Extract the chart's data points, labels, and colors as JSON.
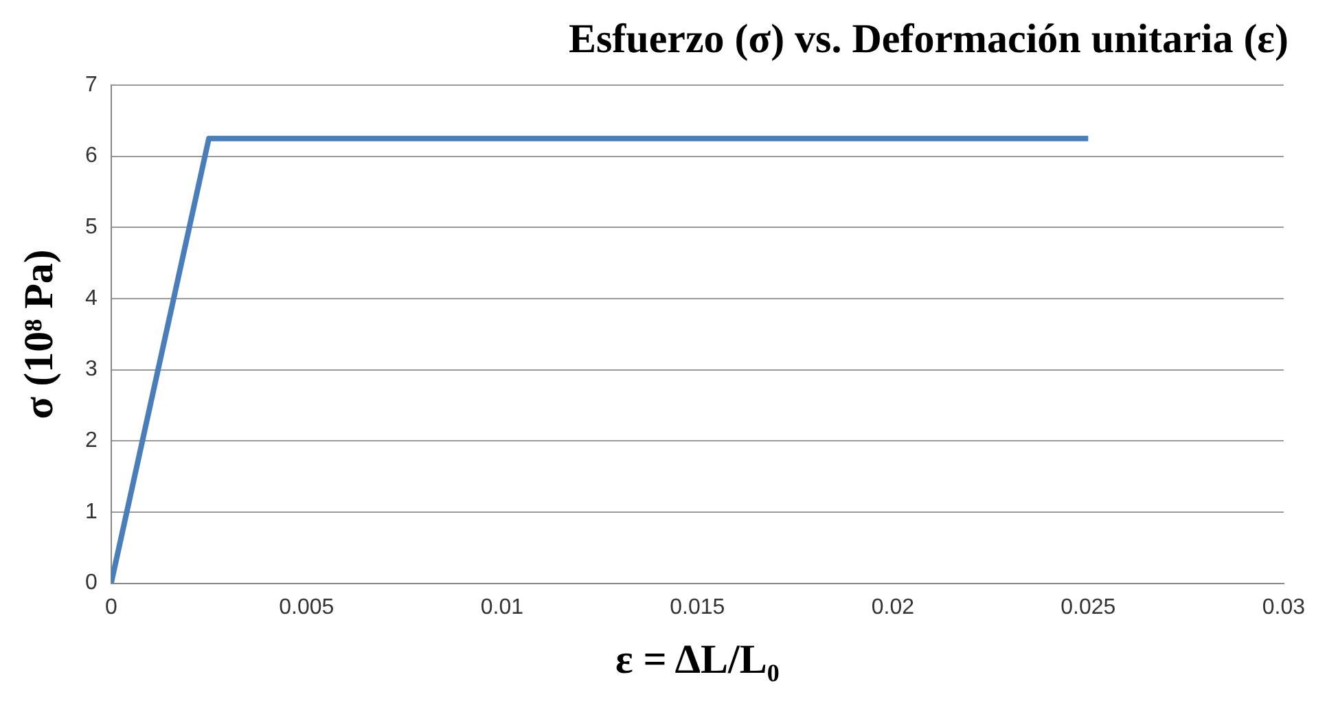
{
  "chart_data": {
    "type": "line",
    "title": "Esfuerzo (σ) vs. Deformación unitaria (ε)",
    "xlabel": "ε = ΔL/L₀",
    "ylabel": "σ (10⁸ Pa)",
    "x": [
      0,
      0.0025,
      0.025
    ],
    "series": [
      {
        "color": "#4a7ebb",
        "values": [
          0,
          6.25,
          6.25
        ]
      }
    ],
    "xlim": [
      0,
      0.03
    ],
    "xticks": [
      0,
      0.005,
      0.01,
      0.015,
      0.02,
      0.025,
      0.03
    ],
    "ylim": [
      0,
      7
    ],
    "yticks": [
      0,
      1,
      2,
      3,
      4,
      5,
      6,
      7
    ],
    "grid": "y",
    "legend": false,
    "marker": "none",
    "line_style": "solid"
  }
}
